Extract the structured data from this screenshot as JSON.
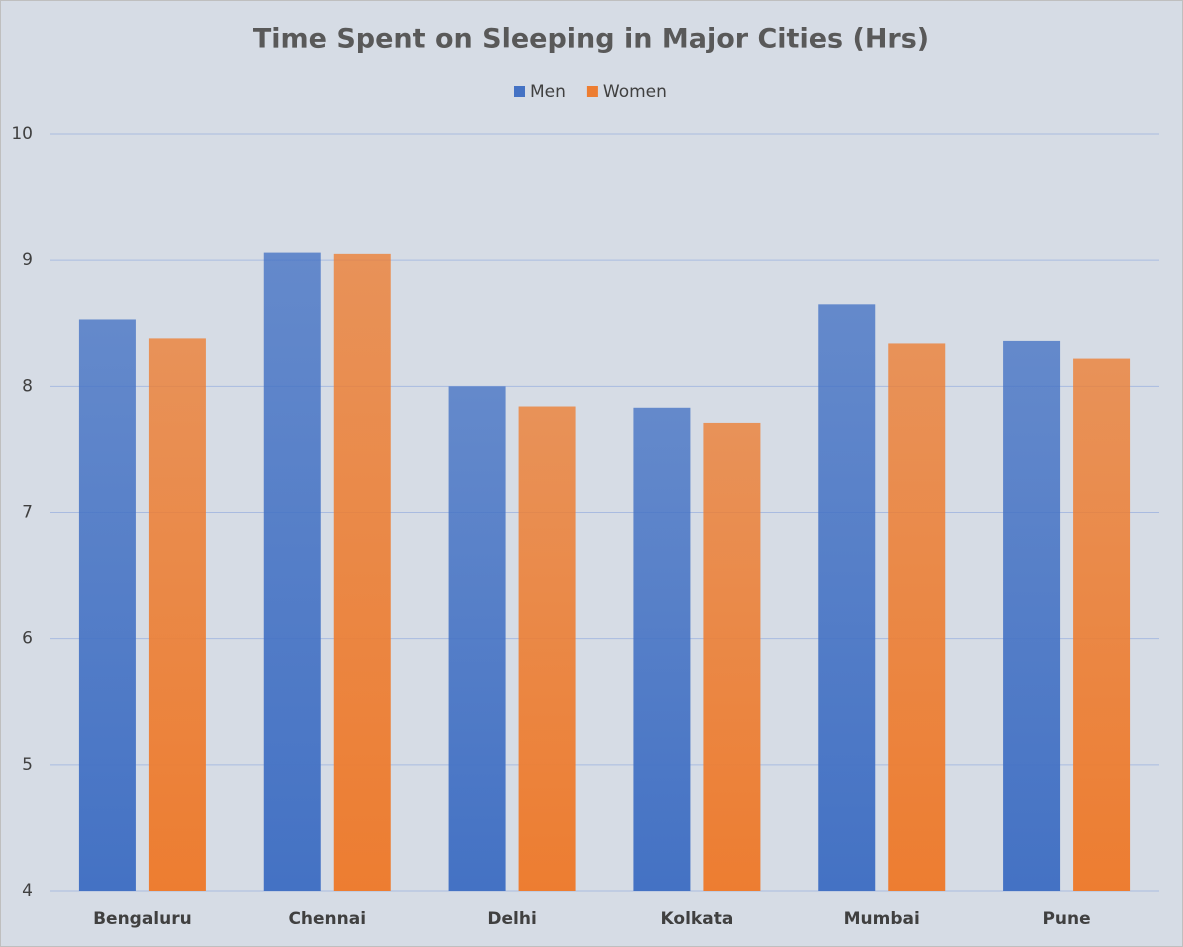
{
  "chart_data": {
    "type": "bar",
    "title": "Time Spent on Sleeping in Major Cities (Hrs)",
    "categories": [
      "Bengaluru",
      "Chennai",
      "Delhi",
      "Kolkata",
      "Mumbai",
      "Pune"
    ],
    "series": [
      {
        "name": "Men",
        "color": "#4472c4",
        "values": [
          8.53,
          9.06,
          8.0,
          7.83,
          8.65,
          8.36
        ]
      },
      {
        "name": "Women",
        "color": "#ed7d31",
        "values": [
          8.38,
          9.05,
          7.84,
          7.71,
          8.34,
          8.22
        ]
      }
    ],
    "ylim": [
      4,
      10
    ],
    "yticks": [
      4,
      5,
      6,
      7,
      8,
      9,
      10
    ],
    "grid": true,
    "legend": "top"
  }
}
